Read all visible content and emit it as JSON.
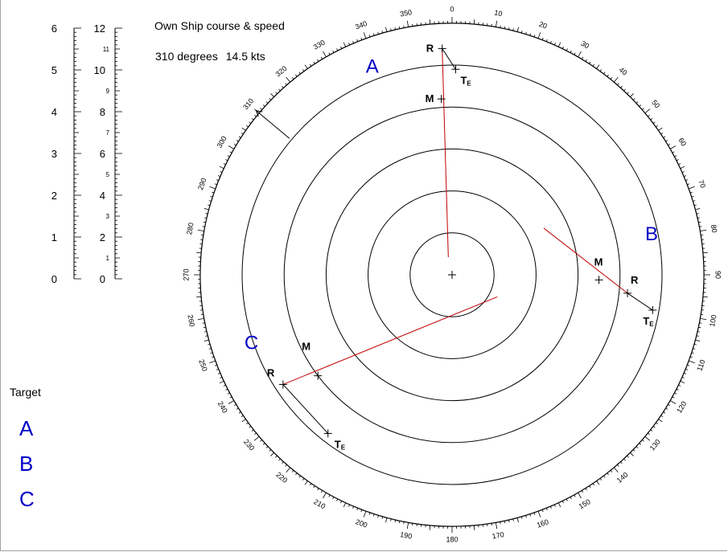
{
  "own_ship": {
    "title": "Own Ship course & speed",
    "course": "310 degrees",
    "speed": "14.5 kts",
    "course_deg": 310
  },
  "targets_panel": {
    "heading": "Target",
    "items": [
      "A",
      "B",
      "C"
    ]
  },
  "scale_nm": {
    "values": [
      "0",
      "1",
      "2",
      "3",
      "4",
      "5",
      "6"
    ]
  },
  "scale_kts": {
    "major": [
      "0",
      "2",
      "4",
      "6",
      "8",
      "10",
      "12"
    ],
    "minor": [
      "1",
      "3",
      "5",
      "7",
      "9",
      "11"
    ]
  },
  "plot": {
    "range_rings": 6,
    "bearing_step": 10,
    "point_labels": {
      "r": "R",
      "m": "M",
      "te": "T",
      "te_sub": "E"
    },
    "targets": [
      {
        "id": "A",
        "label": "A",
        "r": {
          "bearing": 357.5,
          "range": 5.4
        },
        "m": {
          "bearing": 356.5,
          "range": 4.2
        },
        "te": {
          "bearing": 1.0,
          "range": 4.9
        },
        "line_end": {
          "bearing": 348,
          "range": 0.43
        }
      },
      {
        "id": "B",
        "label": "B",
        "r": {
          "bearing": 96.0,
          "range": 4.2
        },
        "m": {
          "bearing": 92.0,
          "range": 3.5
        },
        "te": {
          "bearing": 100.0,
          "range": 4.85
        },
        "line_end": {
          "bearing": 63.0,
          "range": 2.45
        }
      },
      {
        "id": "C",
        "label": "C",
        "r": {
          "bearing": 237.0,
          "range": 4.8
        },
        "m": {
          "bearing": 233.0,
          "range": 4.0
        },
        "te": {
          "bearing": 218.0,
          "range": 4.8
        },
        "line_end": {
          "bearing": 116.0,
          "range": 1.2
        }
      }
    ],
    "colors": {
      "rel_motion": "#c00000",
      "ink": "#000000",
      "target_label": "#0000c8"
    }
  }
}
